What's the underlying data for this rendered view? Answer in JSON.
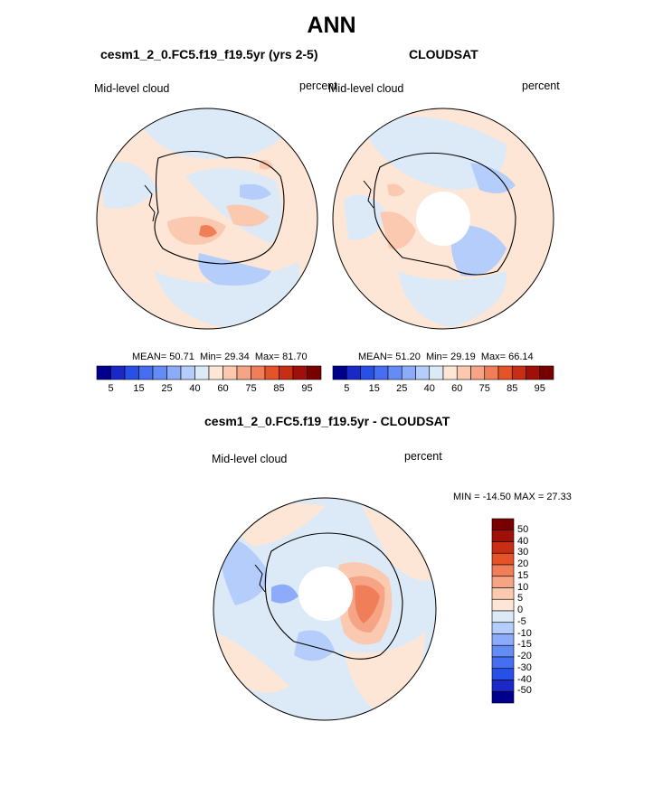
{
  "title": "ANN",
  "panels": {
    "model": {
      "title": "cesm1_2_0.FC5.f19_f19.5yr (yrs 2-5)",
      "left_label": "Mid-level cloud",
      "right_label": "percent",
      "stats": {
        "mean_label": "MEAN=",
        "mean": "50.71",
        "min_label": "Min=",
        "min": "29.34",
        "max_label": "Max=",
        "max": "81.70"
      }
    },
    "obs": {
      "title": "CLOUDSAT",
      "left_label": "Mid-level cloud",
      "right_label": "percent",
      "stats": {
        "mean_label": "MEAN=",
        "mean": "51.20",
        "min_label": "Min=",
        "min": "29.19",
        "max_label": "Max=",
        "max": "66.14"
      }
    },
    "diff": {
      "title": "cesm1_2_0.FC5.f19_f19.5yr - CLOUDSAT",
      "left_label": "Mid-level cloud",
      "right_label": "percent",
      "minmax": "MIN = -14.50 MAX =  27.33"
    }
  },
  "chart_data": [
    {
      "type": "heatmap",
      "projection": "south-polar-stereographic",
      "title": "cesm1_2_0.FC5.f19_f19.5yr (yrs 2-5)",
      "variable": "Mid-level cloud",
      "units": "percent",
      "mean": 50.71,
      "min": 29.34,
      "max": 81.7,
      "colorbar": {
        "orientation": "horizontal",
        "levels": [
          5,
          10,
          15,
          20,
          25,
          30,
          40,
          50,
          60,
          70,
          75,
          80,
          85,
          90,
          95
        ],
        "tick_labels": [
          "5",
          "15",
          "25",
          "40",
          "60",
          "75",
          "85",
          "95"
        ],
        "colors": [
          "#00008c",
          "#1a28c8",
          "#2850e6",
          "#466ef0",
          "#648cf5",
          "#8cabf8",
          "#b4cdfa",
          "#dceaf8",
          "#fde6d6",
          "#fbc9b0",
          "#f6a486",
          "#f07e58",
          "#e45428",
          "#c82e14",
          "#a01008",
          "#780000"
        ]
      }
    },
    {
      "type": "heatmap",
      "projection": "south-polar-stereographic",
      "title": "CLOUDSAT",
      "variable": "Mid-level cloud",
      "units": "percent",
      "mean": 51.2,
      "min": 29.19,
      "max": 66.14,
      "colorbar": {
        "orientation": "horizontal",
        "levels": [
          5,
          10,
          15,
          20,
          25,
          30,
          40,
          50,
          60,
          70,
          75,
          80,
          85,
          90,
          95
        ],
        "tick_labels": [
          "5",
          "15",
          "25",
          "40",
          "60",
          "75",
          "85",
          "95"
        ],
        "colors": [
          "#00008c",
          "#1a28c8",
          "#2850e6",
          "#466ef0",
          "#648cf5",
          "#8cabf8",
          "#b4cdfa",
          "#dceaf8",
          "#fde6d6",
          "#fbc9b0",
          "#f6a486",
          "#f07e58",
          "#e45428",
          "#c82e14",
          "#a01008",
          "#780000"
        ]
      }
    },
    {
      "type": "heatmap",
      "projection": "south-polar-stereographic",
      "title": "cesm1_2_0.FC5.f19_f19.5yr - CLOUDSAT",
      "variable": "Mid-level cloud",
      "units": "percent",
      "min": -14.5,
      "max": 27.33,
      "colorbar": {
        "orientation": "vertical",
        "tick_labels": [
          "50",
          "40",
          "30",
          "20",
          "15",
          "10",
          "5",
          "0",
          "-5",
          "-10",
          "-15",
          "-20",
          "-30",
          "-40",
          "-50"
        ],
        "colors": [
          "#780000",
          "#a01008",
          "#c82e14",
          "#e45428",
          "#f07e58",
          "#f6a486",
          "#fbc9b0",
          "#fde6d6",
          "#dceaf8",
          "#b4cdfa",
          "#8cabf8",
          "#648cf5",
          "#466ef0",
          "#2850e6",
          "#1a28c8",
          "#00008c"
        ]
      }
    }
  ],
  "palette": {
    "ocean_light_red": "#fde6d6",
    "ocean_light_blue": "#dceaf8",
    "ocean_blue": "#b4cdfa",
    "mask": "#ffffff",
    "coast": "#000000"
  }
}
